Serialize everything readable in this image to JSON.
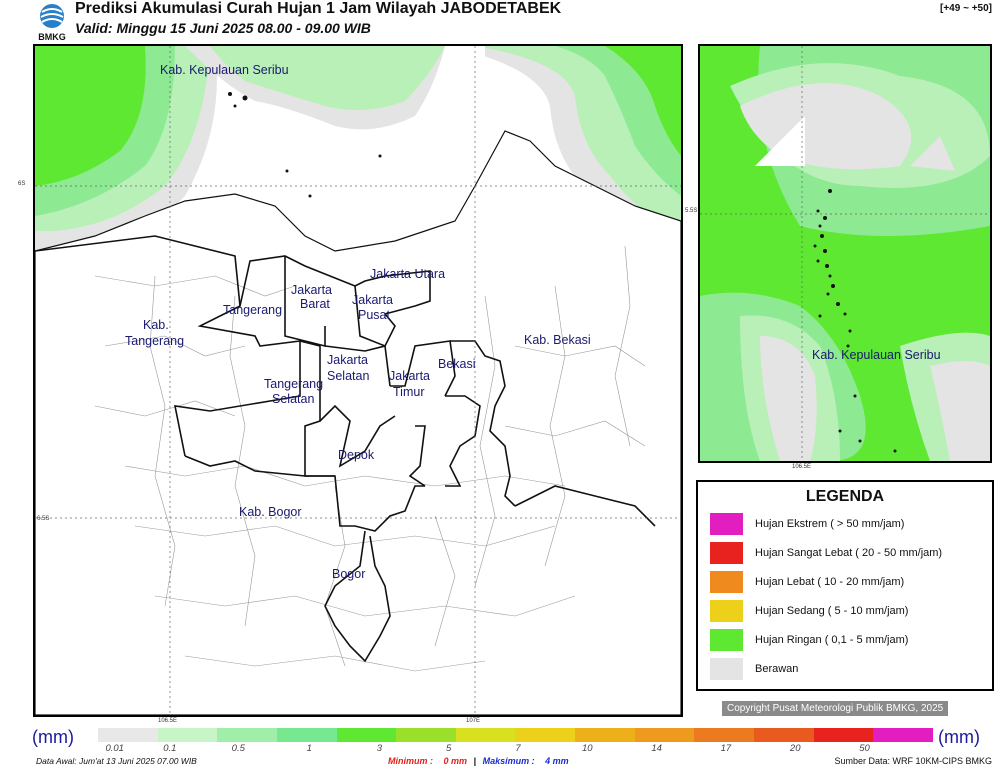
{
  "header": {
    "logo_text": "BMKG",
    "title": "Prediksi Akumulasi Curah Hujan 1 Jam Wilayah JABODETABEK",
    "subtitle": "Valid: Minggu 15 Juni 2025 08.00 - 09.00 WIB",
    "range_tag": "[+49 ~ +50]"
  },
  "main_map": {
    "labels": {
      "kepulauan_seribu": "Kab. Kepulauan Seribu",
      "jakarta_utara": "Jakarta Utara",
      "jakarta_barat_1": "Jakarta",
      "jakarta_barat_2": "Barat",
      "jakarta_pusat_1": "Jakarta",
      "jakarta_pusat_2": "Pusat",
      "tangerang": "Tangerang",
      "kab_tangerang_1": "Kab.",
      "kab_tangerang_2": "Tangerang",
      "jakarta_selatan_1": "Jakarta",
      "jakarta_selatan_2": "Selatan",
      "jakarta_timur_1": "Jakarta",
      "jakarta_timur_2": "Timur",
      "bekasi": "Bekasi",
      "kab_bekasi": "Kab. Bekasi",
      "tangerang_selatan_1": "Tangerang",
      "tangerang_selatan_2": "Selatan",
      "depok": "Depok",
      "kab_bogor": "Kab. Bogor",
      "bogor": "Bogor"
    },
    "ticks": {
      "lat_top": "6S",
      "lat_bottom": "6.5S",
      "lon_left": "106.5E",
      "lon_right": "107E"
    }
  },
  "inset_map": {
    "label": "Kab. Kepulauan Seribu",
    "tick_lat": "5.5S",
    "tick_lon": "106.5E"
  },
  "legend": {
    "title": "LEGENDA",
    "items": [
      {
        "label": "Hujan Ekstrem ( > 50 mm/jam)",
        "color": "#e31ec0"
      },
      {
        "label": "Hujan Sangat Lebat ( 20 - 50 mm/jam)",
        "color": "#e8231f"
      },
      {
        "label": "Hujan Lebat ( 10 - 20 mm/jam)",
        "color": "#ee8a1e"
      },
      {
        "label": "Hujan Sedang ( 5 - 10 mm/jam)",
        "color": "#ecd01a"
      },
      {
        "label": "Hujan Ringan ( 0,1 - 5 mm/jam)",
        "color": "#5ee832"
      },
      {
        "label": "Berawan",
        "color": "#e4e4e4"
      }
    ]
  },
  "copyright": "Copyright Pusat Meteorologi Publik BMKG, 2025",
  "colorbar": {
    "unit": "(mm)",
    "colors": [
      "#e8e8e8",
      "#c8f5c8",
      "#a0eeaa",
      "#78e890",
      "#5ee832",
      "#9ae02a",
      "#d8e020",
      "#ecd01a",
      "#eeb01a",
      "#ee9a1e",
      "#ec7a1e",
      "#e85a1e",
      "#e8231f",
      "#e31ec0"
    ],
    "ticks": [
      "0.01",
      "0.1",
      "0.5",
      "1",
      "3",
      "5",
      "7",
      "10",
      "14",
      "17",
      "20",
      "50"
    ]
  },
  "footer": {
    "data_awal": "Data Awal: Jum'at 13 Juni 2025 07.00 WIB",
    "min_label": "Minimum :",
    "min_value": "0 mm",
    "separator": "|",
    "max_label": "Maksimum :",
    "max_value": "4 mm",
    "source": "Sumber Data: WRF 10KM-CIPS BMKG"
  },
  "colors": {
    "berawan": "#e4e4e4",
    "ringan_light": "#b8f0b8",
    "ringan_mid": "#8eea92",
    "ringan": "#5ee832",
    "region_text": "#1a1a6e"
  }
}
